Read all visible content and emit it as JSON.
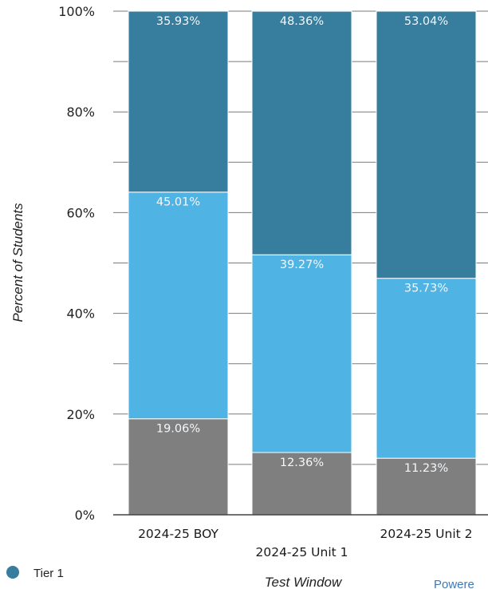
{
  "chart_data": {
    "type": "bar",
    "stacked": true,
    "normalized": true,
    "categories": [
      "2024-25 BOY",
      "2024-25 Unit 1",
      "2024-25 Unit 2"
    ],
    "series": [
      {
        "values": [
          19.06,
          12.36,
          11.23
        ],
        "color": "#7f7f7f"
      },
      {
        "values": [
          45.01,
          39.27,
          35.73
        ],
        "color": "#4fb3e3"
      },
      {
        "name": "Tier 1",
        "values": [
          35.93,
          48.36,
          53.04
        ],
        "color": "#377d9e"
      }
    ],
    "data_labels": [
      [
        "19.06%",
        "12.36%",
        "11.23%"
      ],
      [
        "45.01%",
        "39.27%",
        "35.73%"
      ],
      [
        "35.93%",
        "48.36%",
        "53.04%"
      ]
    ],
    "ylim": [
      0,
      100
    ],
    "y_ticks": [
      "0%",
      "20%",
      "40%",
      "60%",
      "80%",
      "100%"
    ],
    "xlabel": "Test Window",
    "ylabel": "Percent of Students",
    "legend": {
      "position": "bottom-left",
      "items": [
        "Tier 1"
      ],
      "colors": [
        "#377d9e"
      ]
    },
    "grid": true,
    "credit_text": "Powere"
  }
}
